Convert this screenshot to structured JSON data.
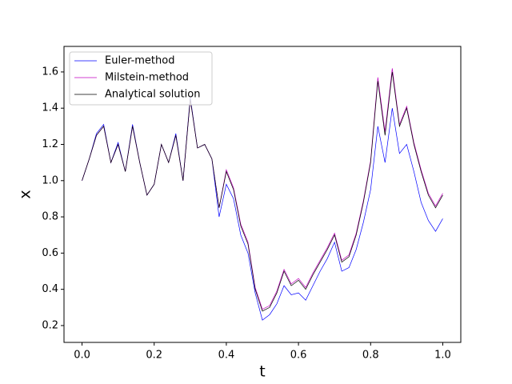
{
  "chart_data": {
    "type": "line",
    "x": [
      0,
      0.02,
      0.04,
      0.06,
      0.08,
      0.1,
      0.12,
      0.14,
      0.16,
      0.18,
      0.2,
      0.22,
      0.24,
      0.26,
      0.28,
      0.3,
      0.32,
      0.34,
      0.36,
      0.38,
      0.4,
      0.42,
      0.44,
      0.46,
      0.48,
      0.5,
      0.52,
      0.54,
      0.56,
      0.58,
      0.6,
      0.62,
      0.64,
      0.66,
      0.68,
      0.7,
      0.72,
      0.74,
      0.76,
      0.78,
      0.8,
      0.82,
      0.84,
      0.86,
      0.88,
      0.9,
      0.92,
      0.94,
      0.96,
      0.98,
      1.0
    ],
    "series": [
      {
        "name": "Euler-method",
        "color": "#0000ff",
        "values": [
          1.0,
          1.12,
          1.26,
          1.31,
          1.1,
          1.21,
          1.05,
          1.31,
          1.1,
          0.92,
          0.98,
          1.2,
          1.1,
          1.26,
          1.0,
          1.46,
          1.18,
          1.2,
          1.12,
          0.8,
          0.98,
          0.9,
          0.7,
          0.6,
          0.38,
          0.23,
          0.26,
          0.32,
          0.42,
          0.37,
          0.38,
          0.34,
          0.42,
          0.5,
          0.57,
          0.66,
          0.5,
          0.52,
          0.62,
          0.77,
          0.95,
          1.3,
          1.1,
          1.4,
          1.15,
          1.2,
          1.05,
          0.88,
          0.78,
          0.72,
          0.79
        ]
      },
      {
        "name": "Milstein-method",
        "color": "#c000c0",
        "values": [
          1.0,
          1.12,
          1.25,
          1.3,
          1.1,
          1.2,
          1.05,
          1.3,
          1.1,
          0.92,
          0.98,
          1.2,
          1.1,
          1.25,
          1.0,
          1.45,
          1.18,
          1.2,
          1.12,
          0.85,
          1.06,
          0.96,
          0.76,
          0.66,
          0.41,
          0.29,
          0.31,
          0.39,
          0.51,
          0.43,
          0.46,
          0.41,
          0.49,
          0.56,
          0.63,
          0.71,
          0.56,
          0.59,
          0.71,
          0.89,
          1.11,
          1.57,
          1.27,
          1.62,
          1.31,
          1.41,
          1.21,
          1.06,
          0.93,
          0.86,
          0.93
        ]
      },
      {
        "name": "Analytical solution",
        "color": "#000000",
        "values": [
          1.0,
          1.12,
          1.25,
          1.3,
          1.1,
          1.2,
          1.05,
          1.3,
          1.1,
          0.92,
          0.98,
          1.2,
          1.1,
          1.25,
          1.0,
          1.45,
          1.18,
          1.2,
          1.12,
          0.85,
          1.05,
          0.95,
          0.75,
          0.65,
          0.4,
          0.28,
          0.3,
          0.38,
          0.5,
          0.42,
          0.45,
          0.4,
          0.48,
          0.55,
          0.62,
          0.7,
          0.55,
          0.58,
          0.7,
          0.88,
          1.1,
          1.55,
          1.25,
          1.6,
          1.3,
          1.4,
          1.2,
          1.05,
          0.92,
          0.85,
          0.92
        ]
      }
    ],
    "xlabel": "t",
    "ylabel": "x",
    "xlim": [
      -0.05,
      1.05
    ],
    "xticks": [
      {
        "value": 0,
        "label": "0.0"
      },
      0.2,
      0.4,
      0.6,
      0.8,
      {
        "value": 1,
        "label": "1.0"
      }
    ],
    "ylim": [
      0.107,
      1.741
    ],
    "yticks": [
      0.2,
      0.4,
      0.6,
      0.8,
      {
        "value": 1,
        "label": "1.0"
      },
      1.2,
      1.4,
      1.6
    ],
    "grid": false,
    "legend": "upper-left"
  }
}
